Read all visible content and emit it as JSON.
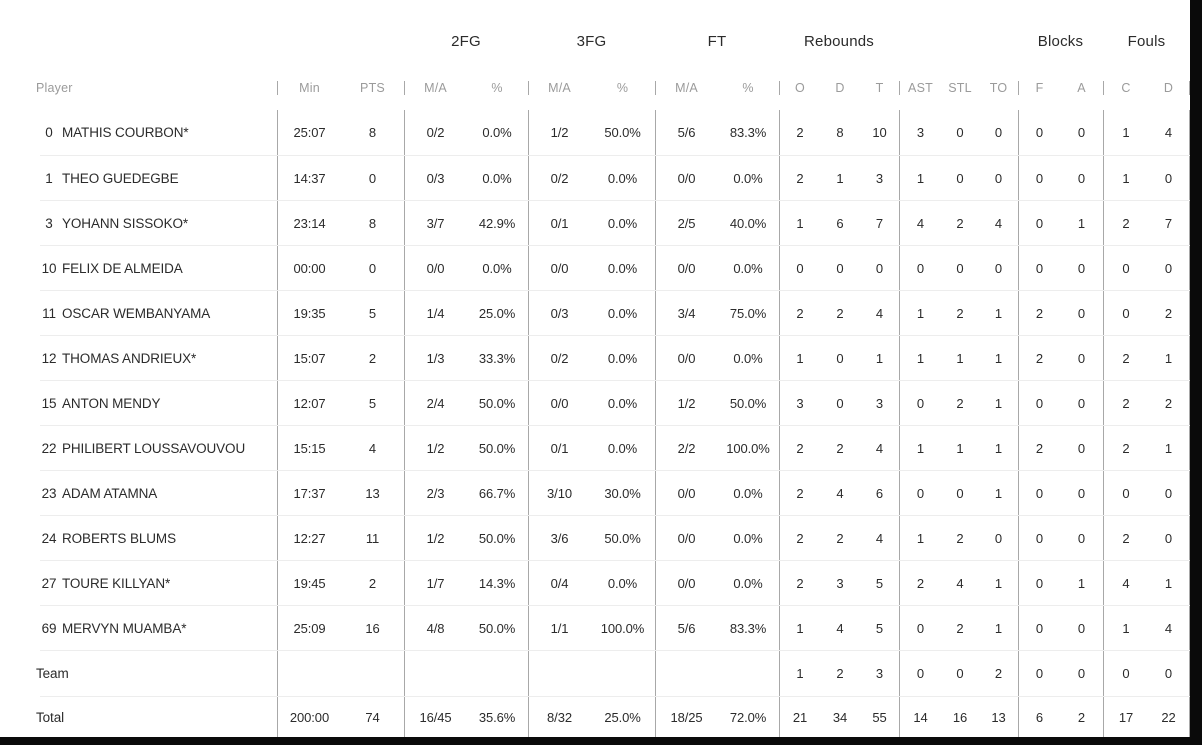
{
  "colors": {
    "text": "#2b2b2b",
    "muted_header": "#9b9b9b",
    "column_divider": "#a8a8a8",
    "row_separator": "#ededed",
    "frame": "#0a0a0a"
  },
  "group_headers": {
    "fg2": "2FG",
    "fg3": "3FG",
    "ft": "FT",
    "rebounds": "Rebounds",
    "blocks": "Blocks",
    "fouls": "Fouls"
  },
  "sub_headers": {
    "player": "Player",
    "min": "Min",
    "pts": "PTS",
    "ma": "M/A",
    "pct": "%",
    "o": "O",
    "d": "D",
    "t": "T",
    "ast": "AST",
    "stl": "STL",
    "to": "TO",
    "f": "F",
    "a": "A",
    "c": "C"
  },
  "rows": [
    {
      "kind": "player",
      "num": "0",
      "name": "MATHIS COURBON*",
      "stats": [
        "25:07",
        "8",
        "0/2",
        "0.0%",
        "1/2",
        "50.0%",
        "5/6",
        "83.3%",
        "2",
        "8",
        "10",
        "3",
        "0",
        "0",
        "0",
        "0",
        "1",
        "4"
      ]
    },
    {
      "kind": "player",
      "num": "1",
      "name": "THEO GUEDEGBE",
      "stats": [
        "14:37",
        "0",
        "0/3",
        "0.0%",
        "0/2",
        "0.0%",
        "0/0",
        "0.0%",
        "2",
        "1",
        "3",
        "1",
        "0",
        "0",
        "0",
        "0",
        "1",
        "0"
      ]
    },
    {
      "kind": "player",
      "num": "3",
      "name": "YOHANN SISSOKO*",
      "stats": [
        "23:14",
        "8",
        "3/7",
        "42.9%",
        "0/1",
        "0.0%",
        "2/5",
        "40.0%",
        "1",
        "6",
        "7",
        "4",
        "2",
        "4",
        "0",
        "1",
        "2",
        "7"
      ]
    },
    {
      "kind": "player",
      "num": "10",
      "name": "FELIX DE ALMEIDA",
      "stats": [
        "00:00",
        "0",
        "0/0",
        "0.0%",
        "0/0",
        "0.0%",
        "0/0",
        "0.0%",
        "0",
        "0",
        "0",
        "0",
        "0",
        "0",
        "0",
        "0",
        "0",
        "0"
      ]
    },
    {
      "kind": "player",
      "num": "11",
      "name": "OSCAR WEMBANYAMA",
      "stats": [
        "19:35",
        "5",
        "1/4",
        "25.0%",
        "0/3",
        "0.0%",
        "3/4",
        "75.0%",
        "2",
        "2",
        "4",
        "1",
        "2",
        "1",
        "2",
        "0",
        "0",
        "2"
      ]
    },
    {
      "kind": "player",
      "num": "12",
      "name": "THOMAS ANDRIEUX*",
      "stats": [
        "15:07",
        "2",
        "1/3",
        "33.3%",
        "0/2",
        "0.0%",
        "0/0",
        "0.0%",
        "1",
        "0",
        "1",
        "1",
        "1",
        "1",
        "2",
        "0",
        "2",
        "1"
      ]
    },
    {
      "kind": "player",
      "num": "15",
      "name": "ANTON MENDY",
      "stats": [
        "12:07",
        "5",
        "2/4",
        "50.0%",
        "0/0",
        "0.0%",
        "1/2",
        "50.0%",
        "3",
        "0",
        "3",
        "0",
        "2",
        "1",
        "0",
        "0",
        "2",
        "2"
      ]
    },
    {
      "kind": "player",
      "num": "22",
      "name": "PHILIBERT LOUSSAVOUVOU",
      "stats": [
        "15:15",
        "4",
        "1/2",
        "50.0%",
        "0/1",
        "0.0%",
        "2/2",
        "100.0%",
        "2",
        "2",
        "4",
        "1",
        "1",
        "1",
        "2",
        "0",
        "2",
        "1"
      ]
    },
    {
      "kind": "player",
      "num": "23",
      "name": "ADAM ATAMNA",
      "stats": [
        "17:37",
        "13",
        "2/3",
        "66.7%",
        "3/10",
        "30.0%",
        "0/0",
        "0.0%",
        "2",
        "4",
        "6",
        "0",
        "0",
        "1",
        "0",
        "0",
        "0",
        "0"
      ]
    },
    {
      "kind": "player",
      "num": "24",
      "name": "ROBERTS BLUMS",
      "stats": [
        "12:27",
        "11",
        "1/2",
        "50.0%",
        "3/6",
        "50.0%",
        "0/0",
        "0.0%",
        "2",
        "2",
        "4",
        "1",
        "2",
        "0",
        "0",
        "0",
        "2",
        "0"
      ]
    },
    {
      "kind": "player",
      "num": "27",
      "name": "TOURE KILLYAN*",
      "stats": [
        "19:45",
        "2",
        "1/7",
        "14.3%",
        "0/4",
        "0.0%",
        "0/0",
        "0.0%",
        "2",
        "3",
        "5",
        "2",
        "4",
        "1",
        "0",
        "1",
        "4",
        "1"
      ]
    },
    {
      "kind": "player",
      "num": "69",
      "name": "MERVYN MUAMBA*",
      "stats": [
        "25:09",
        "16",
        "4/8",
        "50.0%",
        "1/1",
        "100.0%",
        "5/6",
        "83.3%",
        "1",
        "4",
        "5",
        "0",
        "2",
        "1",
        "0",
        "0",
        "1",
        "4"
      ]
    },
    {
      "kind": "team",
      "num": "",
      "name": "Team",
      "stats": [
        "",
        "",
        "",
        "",
        "",
        "",
        "",
        "",
        "1",
        "2",
        "3",
        "0",
        "0",
        "2",
        "0",
        "0",
        "0",
        "0"
      ]
    },
    {
      "kind": "total",
      "num": "",
      "name": "Total",
      "stats": [
        "200:00",
        "74",
        "16/45",
        "35.6%",
        "8/32",
        "25.0%",
        "18/25",
        "72.0%",
        "21",
        "34",
        "55",
        "14",
        "16",
        "13",
        "6",
        "2",
        "17",
        "22"
      ]
    }
  ]
}
